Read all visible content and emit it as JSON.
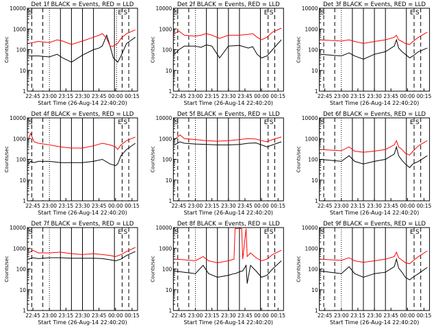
{
  "ylabel": "Counts/sec",
  "xlabel": "Start Time (26-Aug-14 22:40:20)",
  "x_ticks": [
    "22:45",
    "23:00",
    "23:15",
    "23:30",
    "23:45",
    "00:00",
    "00:15"
  ],
  "y_ticks": [
    "1",
    "10",
    "100",
    "1000",
    "10000"
  ],
  "colors": {
    "events": "#000000",
    "lld": "#ff0000"
  },
  "chart_data": [
    {
      "type": "line",
      "title": "Det 1f BLACK = Events, RED = LLD",
      "x": [
        "22:41",
        "22:50",
        "23:00",
        "23:07",
        "23:12",
        "23:20",
        "23:30",
        "23:40",
        "23:45",
        "23:48",
        "23:52",
        "23:55",
        "23:58",
        "00:02",
        "00:05",
        "00:10",
        "00:18"
      ],
      "series": [
        {
          "values": [
            50,
            50,
            45,
            60,
            40,
            25,
            55,
            100,
            120,
            150,
            500,
            150,
            40,
            25,
            50,
            200,
            400
          ]
        },
        {
          "values": [
            200,
            250,
            220,
            300,
            260,
            180,
            260,
            400,
            500,
            600,
            350,
            150,
            150,
            200,
            350,
            600,
            900
          ]
        }
      ],
      "ylim": [
        1,
        10000
      ],
      "yscale": "log",
      "solid_lines": [
        "23:10",
        "23:20",
        "23:30",
        "23:40",
        "23:59"
      ],
      "dotted_lines": [
        "23:00",
        "00:01"
      ],
      "dashed_lines": [
        "22:44",
        "22:54",
        "00:06",
        "00:12"
      ],
      "corner_labels": [
        "S",
        "E",
        "S"
      ]
    },
    {
      "type": "line",
      "title": "Det 2f BLACK = Events, RED = LLD",
      "x": [
        "22:41",
        "22:45",
        "22:50",
        "23:00",
        "23:05",
        "23:10",
        "23:15",
        "23:22",
        "23:30",
        "23:40",
        "23:48",
        "23:52",
        "23:56",
        "00:00",
        "00:05",
        "00:10",
        "00:18"
      ],
      "series": [
        {
          "values": [
            60,
            100,
            150,
            150,
            130,
            170,
            150,
            40,
            150,
            160,
            120,
            140,
            60,
            40,
            50,
            100,
            300
          ]
        },
        {
          "values": [
            600,
            800,
            500,
            450,
            500,
            600,
            500,
            350,
            500,
            500,
            550,
            600,
            400,
            300,
            400,
            700,
            1100
          ]
        }
      ],
      "ylim": [
        1,
        10000
      ],
      "yscale": "log",
      "solid_lines": [
        "23:10",
        "23:20",
        "23:30",
        "23:40",
        "23:59"
      ],
      "dotted_lines": [
        "23:00"
      ],
      "dashed_lines": [
        "22:44",
        "22:54",
        "00:06",
        "00:12"
      ],
      "corner_labels": [
        "S",
        "E",
        "S"
      ]
    },
    {
      "type": "line",
      "title": "Det 3f BLACK = Events, RED = LLD",
      "x": [
        "22:41",
        "22:50",
        "23:00",
        "23:07",
        "23:12",
        "23:20",
        "23:30",
        "23:40",
        "23:48",
        "23:50",
        "23:52",
        "23:55",
        "23:58",
        "00:02",
        "00:05",
        "00:10",
        "00:18"
      ],
      "series": [
        {
          "values": [
            60,
            55,
            50,
            70,
            50,
            35,
            60,
            80,
            150,
            300,
            120,
            80,
            60,
            40,
            50,
            80,
            120
          ]
        },
        {
          "values": [
            300,
            280,
            260,
            300,
            250,
            200,
            250,
            300,
            400,
            500,
            300,
            250,
            200,
            180,
            250,
            400,
            700
          ]
        }
      ],
      "ylim": [
        1,
        10000
      ],
      "yscale": "log",
      "solid_lines": [
        "23:10",
        "23:20",
        "23:30",
        "23:40",
        "23:59"
      ],
      "dotted_lines": [
        "23:00"
      ],
      "dashed_lines": [
        "22:44",
        "22:54",
        "00:06",
        "00:12"
      ],
      "corner_labels": [
        "S",
        "E",
        "S"
      ]
    },
    {
      "type": "line",
      "title": "Det 4f BLACK = Events, RED = LLD",
      "x": [
        "22:41",
        "22:43",
        "22:46",
        "22:50",
        "23:00",
        "23:10",
        "23:20",
        "23:30",
        "23:40",
        "23:48",
        "23:55",
        "00:00",
        "00:02",
        "00:05",
        "00:10",
        "00:18"
      ],
      "series": [
        {
          "values": [
            60,
            80,
            70,
            80,
            80,
            70,
            70,
            70,
            80,
            100,
            60,
            50,
            60,
            150,
            300,
            600
          ]
        },
        {
          "values": [
            1000,
            1800,
            700,
            600,
            500,
            400,
            350,
            350,
            450,
            600,
            500,
            400,
            300,
            500,
            800,
            1200
          ]
        }
      ],
      "ylim": [
        1,
        10000
      ],
      "yscale": "log",
      "solid_lines": [
        "23:10",
        "23:20",
        "23:30",
        "23:40",
        "23:59"
      ],
      "dotted_lines": [
        "23:00"
      ],
      "dashed_lines": [
        "22:44",
        "22:54",
        "00:06",
        "00:12"
      ],
      "corner_labels": [
        "S",
        "E",
        "S"
      ]
    },
    {
      "type": "line",
      "title": "Det 5f BLACK = Events, RED = LLD",
      "x": [
        "22:41",
        "22:46",
        "22:50",
        "23:00",
        "23:10",
        "23:20",
        "23:30",
        "23:40",
        "23:48",
        "23:55",
        "00:00",
        "00:05",
        "00:10",
        "00:18"
      ],
      "series": [
        {
          "values": [
            500,
            700,
            600,
            550,
            520,
            500,
            500,
            520,
            600,
            620,
            500,
            400,
            500,
            700
          ]
        },
        {
          "values": [
            900,
            1500,
            1000,
            900,
            800,
            750,
            800,
            900,
            1000,
            950,
            800,
            700,
            900,
            1200
          ]
        }
      ],
      "ylim": [
        1,
        10000
      ],
      "yscale": "log",
      "solid_lines": [
        "23:10",
        "23:20",
        "23:30",
        "23:40",
        "23:59"
      ],
      "dotted_lines": [
        "23:00"
      ],
      "dashed_lines": [
        "22:44",
        "22:54",
        "00:06",
        "00:12"
      ],
      "corner_labels": [
        "S",
        "E",
        "S"
      ]
    },
    {
      "type": "line",
      "title": "Det 6f BLACK = Events, RED = LLD",
      "x": [
        "22:41",
        "22:50",
        "23:00",
        "23:07",
        "23:12",
        "23:20",
        "23:30",
        "23:40",
        "23:48",
        "23:50",
        "23:52",
        "23:55",
        "23:58",
        "00:02",
        "00:05",
        "00:10",
        "00:18"
      ],
      "series": [
        {
          "values": [
            100,
            90,
            80,
            150,
            80,
            60,
            80,
            100,
            180,
            400,
            150,
            90,
            60,
            40,
            60,
            80,
            150
          ]
        },
        {
          "values": [
            300,
            280,
            260,
            400,
            250,
            220,
            250,
            300,
            500,
            800,
            400,
            300,
            200,
            160,
            250,
            450,
            800
          ]
        }
      ],
      "ylim": [
        1,
        10000
      ],
      "yscale": "log",
      "solid_lines": [
        "23:10",
        "23:20",
        "23:30",
        "23:40",
        "23:59"
      ],
      "dotted_lines": [
        "23:00"
      ],
      "dashed_lines": [
        "22:44",
        "22:54",
        "00:06",
        "00:12"
      ],
      "corner_labels": [
        "S",
        "E",
        "S"
      ]
    },
    {
      "type": "line",
      "title": "Det 7f BLACK = Events, RED = LLD",
      "x": [
        "22:41",
        "22:45",
        "22:50",
        "23:00",
        "23:10",
        "23:20",
        "23:30",
        "23:40",
        "23:48",
        "23:55",
        "00:00",
        "00:05",
        "00:10",
        "00:18"
      ],
      "series": [
        {
          "values": [
            300,
            350,
            320,
            350,
            350,
            330,
            330,
            330,
            320,
            280,
            250,
            300,
            450,
            700
          ]
        },
        {
          "values": [
            600,
            800,
            600,
            600,
            650,
            550,
            500,
            550,
            500,
            450,
            400,
            500,
            700,
            1100
          ]
        }
      ],
      "ylim": [
        1,
        10000
      ],
      "yscale": "log",
      "solid_lines": [
        "23:10",
        "23:20",
        "23:30",
        "23:40",
        "23:59"
      ],
      "dotted_lines": [
        "23:00"
      ],
      "dashed_lines": [
        "22:44",
        "22:54",
        "00:06",
        "00:12"
      ],
      "corner_labels": [
        "S",
        "E",
        "S"
      ]
    },
    {
      "type": "line",
      "title": "Det 8f BLACK = Events, RED = LLD",
      "x": [
        "22:41",
        "22:50",
        "23:00",
        "23:07",
        "23:12",
        "23:20",
        "23:30",
        "23:35",
        "23:36",
        "23:42",
        "23:43",
        "23:46",
        "23:47",
        "23:50",
        "23:55",
        "00:00",
        "00:05",
        "00:10",
        "00:18"
      ],
      "series": [
        {
          "values": [
            80,
            70,
            60,
            150,
            60,
            40,
            50,
            60,
            60,
            80,
            80,
            150,
            20,
            150,
            80,
            40,
            50,
            100,
            250
          ]
        },
        {
          "values": [
            300,
            280,
            250,
            400,
            250,
            200,
            250,
            300,
            9000,
            9000,
            300,
            9000,
            400,
            600,
            350,
            250,
            300,
            500,
            800
          ]
        }
      ],
      "ylim": [
        1,
        10000
      ],
      "yscale": "log",
      "solid_lines": [
        "23:10",
        "23:20",
        "23:30",
        "23:40",
        "23:59"
      ],
      "dotted_lines": [
        "23:00"
      ],
      "dashed_lines": [
        "22:44",
        "22:54",
        "00:06",
        "00:12"
      ],
      "corner_labels": [
        "S",
        "E",
        "S"
      ]
    },
    {
      "type": "line",
      "title": "Det 9f BLACK = Events, RED = LLD",
      "x": [
        "22:41",
        "22:50",
        "23:00",
        "23:07",
        "23:12",
        "23:20",
        "23:30",
        "23:40",
        "23:48",
        "23:50",
        "23:52",
        "23:55",
        "23:58",
        "00:02",
        "00:05",
        "00:10",
        "00:18"
      ],
      "series": [
        {
          "values": [
            80,
            70,
            60,
            130,
            60,
            40,
            60,
            70,
            130,
            300,
            110,
            70,
            40,
            30,
            40,
            60,
            120
          ]
        },
        {
          "values": [
            300,
            280,
            260,
            350,
            250,
            210,
            250,
            300,
            400,
            650,
            350,
            270,
            200,
            180,
            250,
            400,
            750
          ]
        }
      ],
      "ylim": [
        1,
        10000
      ],
      "yscale": "log",
      "solid_lines": [
        "23:10",
        "23:20",
        "23:30",
        "23:40",
        "23:59"
      ],
      "dotted_lines": [
        "23:00"
      ],
      "dashed_lines": [
        "22:44",
        "22:54",
        "00:06",
        "00:12"
      ],
      "corner_labels": [
        "S",
        "E",
        "S"
      ]
    }
  ]
}
